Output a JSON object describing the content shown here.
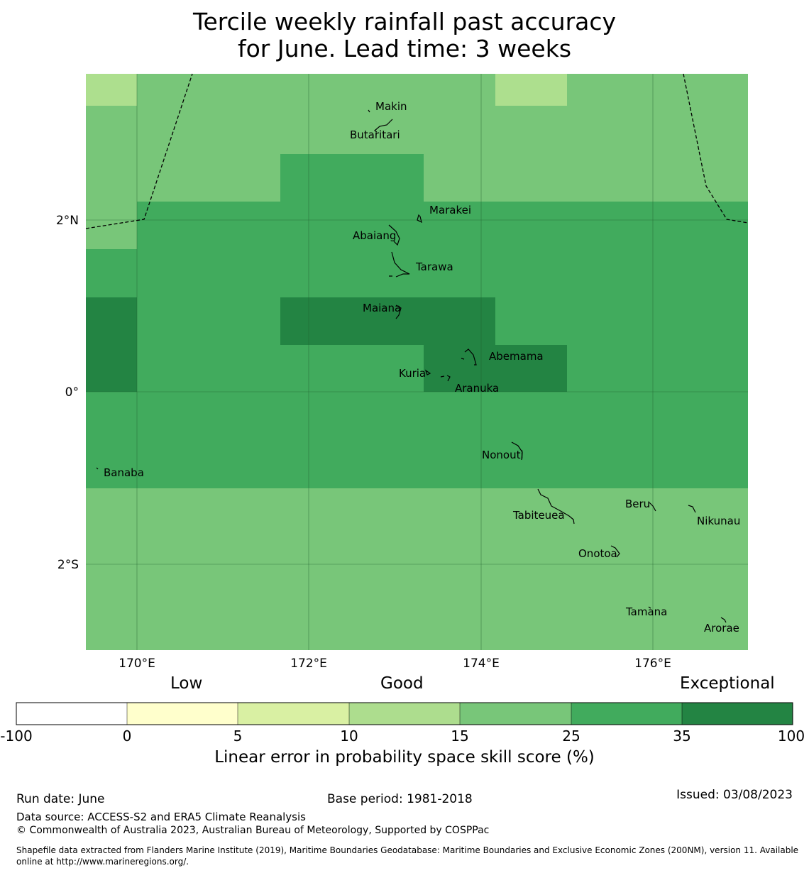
{
  "title_line1": "Tercile weekly rainfall past accuracy",
  "title_line2": "for June. Lead time: 3 weeks",
  "map": {
    "lon_ticks": [
      "170°E",
      "172°E",
      "174°E",
      "176°E"
    ],
    "lat_ticks": [
      "2°N",
      "0°",
      "2°S"
    ],
    "islands": [
      "Makin",
      "Butaritari",
      "Marakei",
      "Abaiang",
      "Tarawa",
      "Maiana",
      "Abemama",
      "Kuria",
      "Aranuka",
      "Nonouti",
      "Banaba",
      "Tabiteuea",
      "Beru",
      "Nikunau",
      "Onotoa",
      "Tamana",
      "Arorae"
    ],
    "colors": {
      "c10_15": "#addf8e",
      "c15_25": "#78c679",
      "c25_35": "#41ab5d",
      "c35_100": "#238443"
    }
  },
  "legend": {
    "categories": [
      "Low",
      "Good",
      "Exceptional"
    ],
    "ticks": [
      "-100",
      "0",
      "5",
      "10",
      "15",
      "25",
      "35",
      "100"
    ],
    "colors": [
      "#ffffff",
      "#ffffcc",
      "#d9f0a3",
      "#addd8e",
      "#78c679",
      "#41ab5d",
      "#238443"
    ],
    "label": "Linear error in probability space skill score (%)"
  },
  "footer": {
    "run_date": "Run date: June",
    "base_period": "Base period: 1981-2018",
    "issued": "Issued: 03/08/2023",
    "data_source": "Data source: ACCESS-S2 and ERA5 Climate Reanalysis",
    "copyright": "© Commonwealth of Australia 2023, Australian Bureau of Meteorology, Supported by COSPPac",
    "shapefile": "Shapefile data extracted from Flanders Marine Institute (2019), Maritime Boundaries Geodatabase: Maritime Boundaries and Exclusive Economic Zones (200NM), version 11. Available online at http://www.marineregions.org/."
  }
}
